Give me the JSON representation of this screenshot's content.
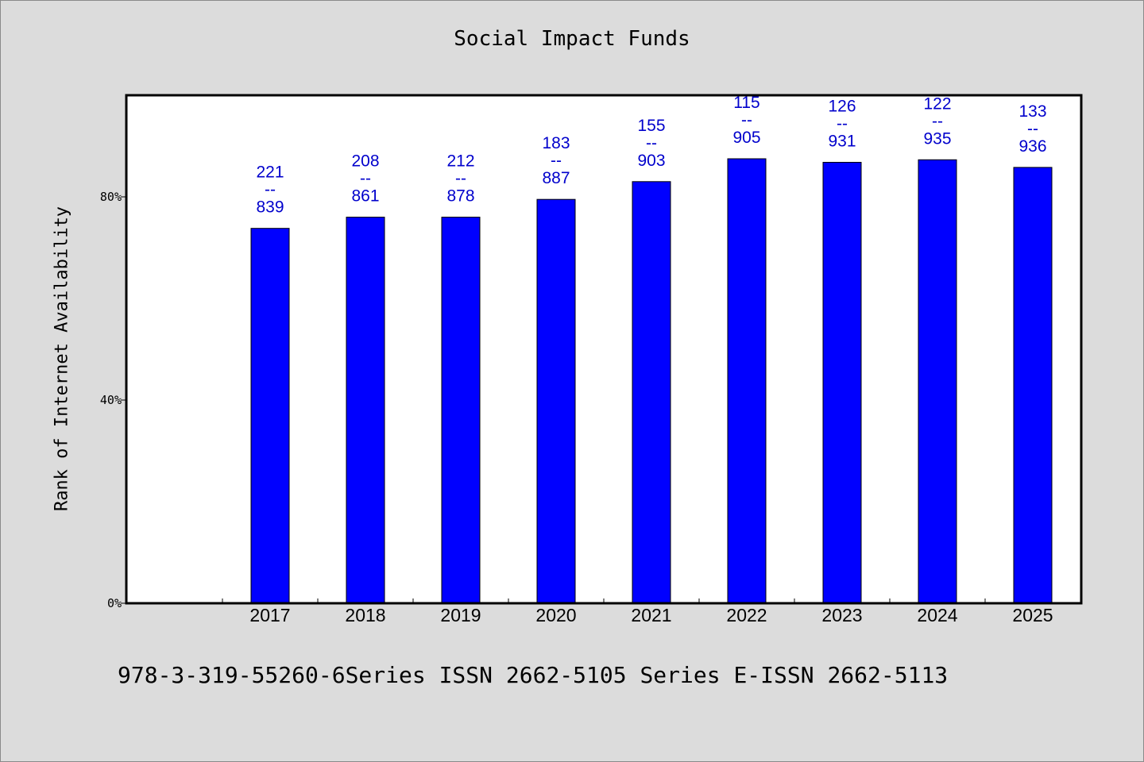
{
  "chart_data": {
    "type": "bar",
    "title": "Social Impact Funds",
    "xlabel": "",
    "ylabel": "Rank of Internet Availability",
    "categories": [
      "2017",
      "2018",
      "2019",
      "2020",
      "2021",
      "2022",
      "2023",
      "2024",
      "2025"
    ],
    "values": [
      73.8,
      76.0,
      76.0,
      79.5,
      83.0,
      87.5,
      86.8,
      87.3,
      85.8
    ],
    "data_labels": [
      [
        "221",
        "--",
        "839"
      ],
      [
        "208",
        "--",
        "861"
      ],
      [
        "212",
        "--",
        "878"
      ],
      [
        "183",
        "--",
        "887"
      ],
      [
        "155",
        "--",
        "903"
      ],
      [
        "115",
        "--",
        "905"
      ],
      [
        "126",
        "--",
        "931"
      ],
      [
        "122",
        "--",
        "935"
      ],
      [
        "133",
        "--",
        "936"
      ]
    ],
    "ylim": [
      0,
      100
    ],
    "yticks": [
      0,
      40,
      80
    ],
    "ytick_labels": [
      "0%",
      "40%",
      "80%"
    ],
    "grid": false,
    "bar_color": "#0000ff",
    "label_color": "#0000cc",
    "background": "#dcdcdc",
    "plot_background": "#ffffff"
  },
  "footer": {
    "note": "978-3-319-55260-6Series ISSN 2662-5105 Series E-ISSN 2662-5113"
  }
}
